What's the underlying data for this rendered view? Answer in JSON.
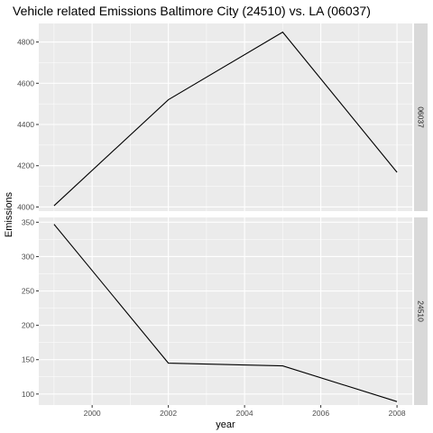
{
  "chart_data": {
    "type": "line",
    "title": "Vehicle related Emissions Baltimore City (24510) vs. LA (06037)",
    "xlabel": "year",
    "ylabel": "Emissions",
    "grid": true,
    "facet_layout": "rows, strip labels on right",
    "x_ticks": [
      2000,
      2002,
      2004,
      2006,
      2008
    ],
    "xlim": [
      1998.6,
      2008.4
    ],
    "panels": [
      {
        "strip_label": "06037",
        "ylim": [
          3980,
          4890
        ],
        "y_ticks": [
          4000,
          4200,
          4400,
          4600,
          4800
        ],
        "x": [
          1999,
          2002,
          2005,
          2008
        ],
        "values": [
          4006,
          4520,
          4848,
          4168
        ]
      },
      {
        "strip_label": "24510",
        "ylim": [
          84,
          357
        ],
        "y_ticks": [
          100,
          150,
          200,
          250,
          300,
          350
        ],
        "x": [
          1999,
          2002,
          2005,
          2008
        ],
        "values": [
          347,
          145,
          141,
          89
        ]
      }
    ],
    "colors": {
      "panel_bg": "#ebebeb",
      "grid": "#ffffff",
      "strip_bg": "#d9d9d9",
      "line": "#000000"
    }
  }
}
